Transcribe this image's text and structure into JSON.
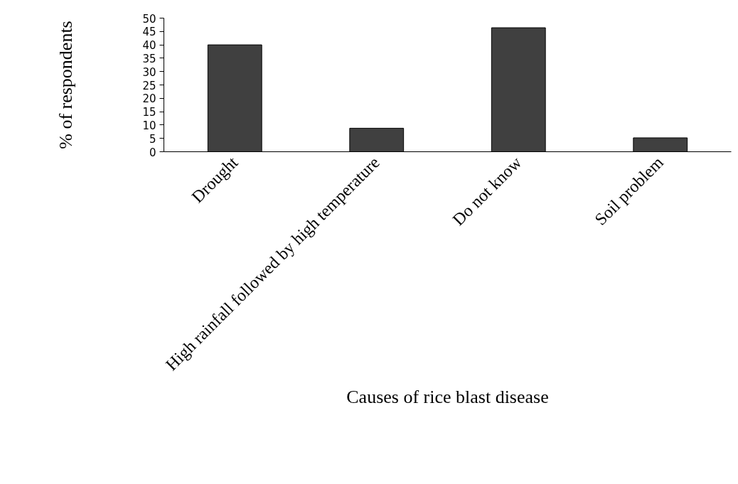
{
  "chart_data": {
    "type": "bar",
    "xlabel": "Causes of rice blast disease",
    "ylabel": "% of respondents",
    "categories": [
      "Drought",
      "High rainfall followed by high temperature",
      "Do not know",
      "Soil problem"
    ],
    "values": [
      40,
      8.8,
      46.4,
      5.2
    ],
    "color": "#404040",
    "ylim": [
      0,
      50
    ],
    "yticks": [
      0,
      5,
      10,
      15,
      20,
      25,
      30,
      35,
      40,
      45,
      50
    ],
    "grid": false
  }
}
